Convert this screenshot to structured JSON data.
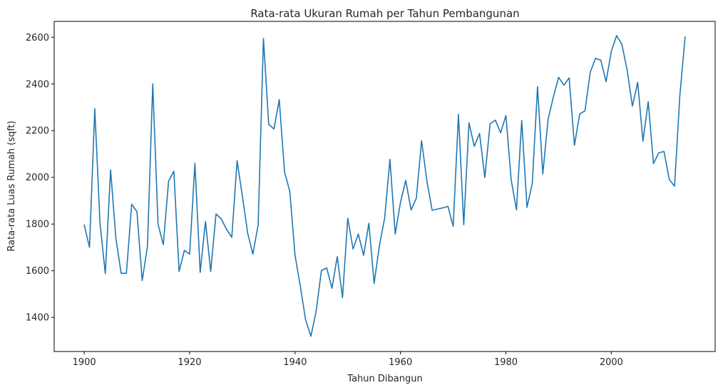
{
  "chart_data": {
    "type": "line",
    "title": "Rata-rata Ukuran Rumah per Tahun Pembangunan",
    "xlabel": "Tahun Dibangun",
    "ylabel": "Rata-rata Luas Rumah (sqft)",
    "xlim": [
      1894.3,
      2019.7
    ],
    "ylim": [
      1254,
      2668
    ],
    "xticks": [
      1900,
      1920,
      1940,
      1960,
      1980,
      2000
    ],
    "yticks": [
      1400,
      1600,
      1800,
      2000,
      2200,
      2400,
      2600
    ],
    "grid": false,
    "legend": "none",
    "series": [
      {
        "color": "#1f77b4",
        "x": [
          1900,
          1901,
          1902,
          1903,
          1904,
          1905,
          1906,
          1907,
          1908,
          1909,
          1910,
          1911,
          1912,
          1913,
          1914,
          1915,
          1916,
          1917,
          1918,
          1919,
          1920,
          1921,
          1922,
          1923,
          1924,
          1925,
          1926,
          1927,
          1928,
          1929,
          1930,
          1931,
          1932,
          1933,
          1934,
          1935,
          1936,
          1937,
          1938,
          1939,
          1940,
          1941,
          1942,
          1943,
          1944,
          1945,
          1946,
          1947,
          1948,
          1949,
          1950,
          1951,
          1952,
          1953,
          1954,
          1955,
          1956,
          1957,
          1958,
          1959,
          1960,
          1961,
          1962,
          1963,
          1964,
          1965,
          1966,
          1967,
          1968,
          1969,
          1970,
          1971,
          1972,
          1973,
          1974,
          1975,
          1976,
          1977,
          1978,
          1979,
          1980,
          1981,
          1982,
          1983,
          1984,
          1985,
          1986,
          1987,
          1988,
          1989,
          1990,
          1991,
          1992,
          1993,
          1994,
          1995,
          1996,
          1997,
          1998,
          1999,
          2000,
          2001,
          2002,
          2003,
          2004,
          2005,
          2006,
          2007,
          2008,
          2009,
          2010,
          2011,
          2012,
          2013,
          2014
        ],
        "y": [
          1796,
          1700,
          2294,
          1802,
          1587,
          2032,
          1740,
          1589,
          1589,
          1885,
          1853,
          1558,
          1706,
          2400,
          1800,
          1712,
          1983,
          2026,
          1597,
          1687,
          1671,
          2060,
          1593,
          1811,
          1597,
          1843,
          1822,
          1777,
          1743,
          2071,
          1920,
          1762,
          1671,
          1798,
          2595,
          2227,
          2207,
          2333,
          2023,
          1940,
          1665,
          1533,
          1390,
          1319,
          1427,
          1601,
          1612,
          1525,
          1660,
          1485,
          1825,
          1693,
          1757,
          1666,
          1803,
          1546,
          1707,
          1826,
          2077,
          1757,
          1893,
          1987,
          1860,
          1910,
          2157,
          1986,
          1859,
          1864,
          1869,
          1876,
          1790,
          2270,
          1797,
          2233,
          2133,
          2188,
          1999,
          2229,
          2245,
          2191,
          2265,
          1989,
          1861,
          2244,
          1872,
          1973,
          2388,
          2015,
          2248,
          2344,
          2429,
          2395,
          2426,
          2137,
          2271,
          2285,
          2450,
          2510,
          2502,
          2410,
          2540,
          2607,
          2570,
          2460,
          2305,
          2407,
          2155,
          2324,
          2059,
          2105,
          2111,
          1990,
          1962,
          2350,
          2602
        ]
      }
    ]
  }
}
